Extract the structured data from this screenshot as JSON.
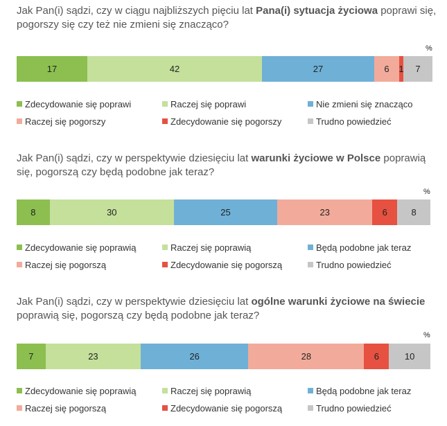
{
  "percent_label": "%",
  "chart_data": [
    {
      "type": "bar",
      "orientation": "horizontal-stacked",
      "title_parts": [
        "Jak Pan(i) sądzi, czy w ciągu najbliższych pięciu lat ",
        "Pana(i) sytuacja życiowa",
        " poprawi się, pogorszy się czy też nie zmieni się znacząco?"
      ],
      "unit": "%",
      "series": [
        {
          "name": "Zdecydowanie się poprawi",
          "value": 17,
          "color": "#8cbf4f"
        },
        {
          "name": "Raczej się poprawi",
          "value": 42,
          "color": "#c4e09b"
        },
        {
          "name": "Nie zmieni się znacząco",
          "value": 27,
          "color": "#6fb0d6"
        },
        {
          "name": "Raczej się pogorszy",
          "value": 6,
          "color": "#f2ab9a"
        },
        {
          "name": "Zdecydowanie się pogorszy",
          "value": 1,
          "color": "#e65141"
        },
        {
          "name": "Trudno powiedzieć",
          "value": 7,
          "color": "#c6c6c6"
        }
      ]
    },
    {
      "type": "bar",
      "orientation": "horizontal-stacked",
      "title_parts": [
        "Jak Pan(i) sądzi, czy w perspektywie dziesięciu lat ",
        "warunki życiowe w Polsce",
        " poprawią się, pogorszą czy będą podobne jak teraz?"
      ],
      "unit": "%",
      "series": [
        {
          "name": "Zdecydowanie się poprawią",
          "value": 8,
          "color": "#8cbf4f"
        },
        {
          "name": "Raczej się poprawią",
          "value": 30,
          "color": "#c4e09b"
        },
        {
          "name": "Będą podobne jak teraz",
          "value": 25,
          "color": "#6fb0d6"
        },
        {
          "name": "Raczej się pogorszą",
          "value": 23,
          "color": "#f2ab9a"
        },
        {
          "name": "Zdecydowanie się pogorszą",
          "value": 6,
          "color": "#e65141"
        },
        {
          "name": "Trudno powiedzieć",
          "value": 8,
          "color": "#c6c6c6"
        }
      ]
    },
    {
      "type": "bar",
      "orientation": "horizontal-stacked",
      "title_parts": [
        "Jak Pan(i) sądzi, czy w perspektywie dziesięciu lat ",
        "ogólne warunki życiowe na świecie",
        " poprawią się, pogorszą czy będą podobne jak teraz?"
      ],
      "unit": "%",
      "series": [
        {
          "name": "Zdecydowanie się poprawią",
          "value": 7,
          "color": "#8cbf4f"
        },
        {
          "name": "Raczej się poprawią",
          "value": 23,
          "color": "#c4e09b"
        },
        {
          "name": "Będą podobne jak teraz",
          "value": 26,
          "color": "#6fb0d6"
        },
        {
          "name": "Raczej się pogorszą",
          "value": 28,
          "color": "#f2ab9a"
        },
        {
          "name": "Zdecydowanie się pogorszą",
          "value": 6,
          "color": "#e65141"
        },
        {
          "name": "Trudno powiedzieć",
          "value": 10,
          "color": "#c6c6c6"
        }
      ]
    }
  ]
}
